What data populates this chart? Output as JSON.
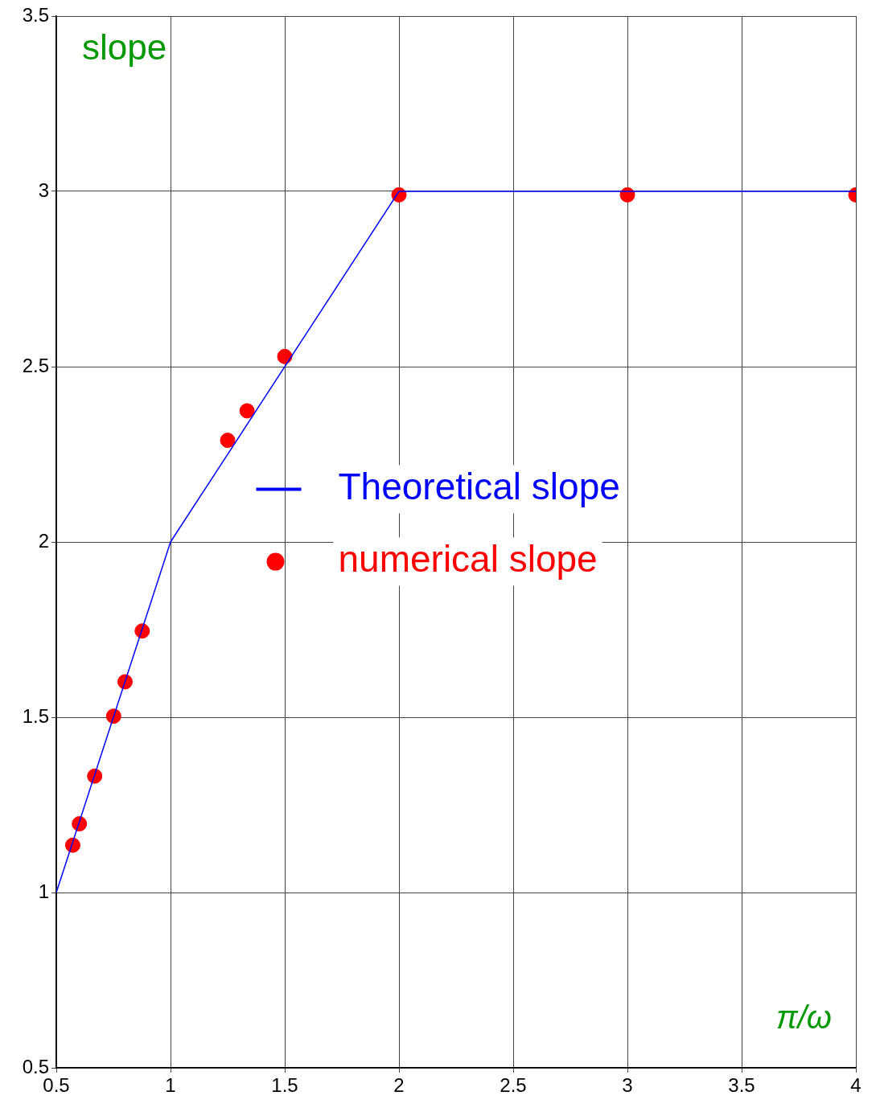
{
  "chart_data": {
    "type": "line",
    "xlabel": "π/ω",
    "ylabel": "slope",
    "xlim": [
      0.5,
      4
    ],
    "xticks": [
      0.5,
      1,
      1.5,
      2,
      2.5,
      3,
      3.5,
      4
    ],
    "ylim": [
      0.5,
      3.5
    ],
    "yticks": [
      0.5,
      1,
      1.5,
      2,
      2.5,
      3,
      3.5
    ],
    "grid": true,
    "legend": "center",
    "series": [
      {
        "name": "Theoretical slope",
        "color": "#0000ff",
        "marker": "none",
        "line_style": "solid",
        "x": [
          0.5,
          1,
          2,
          4
        ],
        "values": [
          1,
          2,
          3,
          3
        ]
      },
      {
        "name": "numerical slope",
        "type": "scatter",
        "color": "#ff0000",
        "marker": "circle",
        "x": [
          0.572,
          0.601,
          0.668,
          0.751,
          0.801,
          0.876,
          1.25,
          1.335,
          1.5,
          2,
          3,
          4
        ],
        "values": [
          1.135,
          1.196,
          1.332,
          1.503,
          1.601,
          1.746,
          2.29,
          2.374,
          2.529,
          2.99,
          2.99,
          2.99
        ]
      }
    ]
  }
}
